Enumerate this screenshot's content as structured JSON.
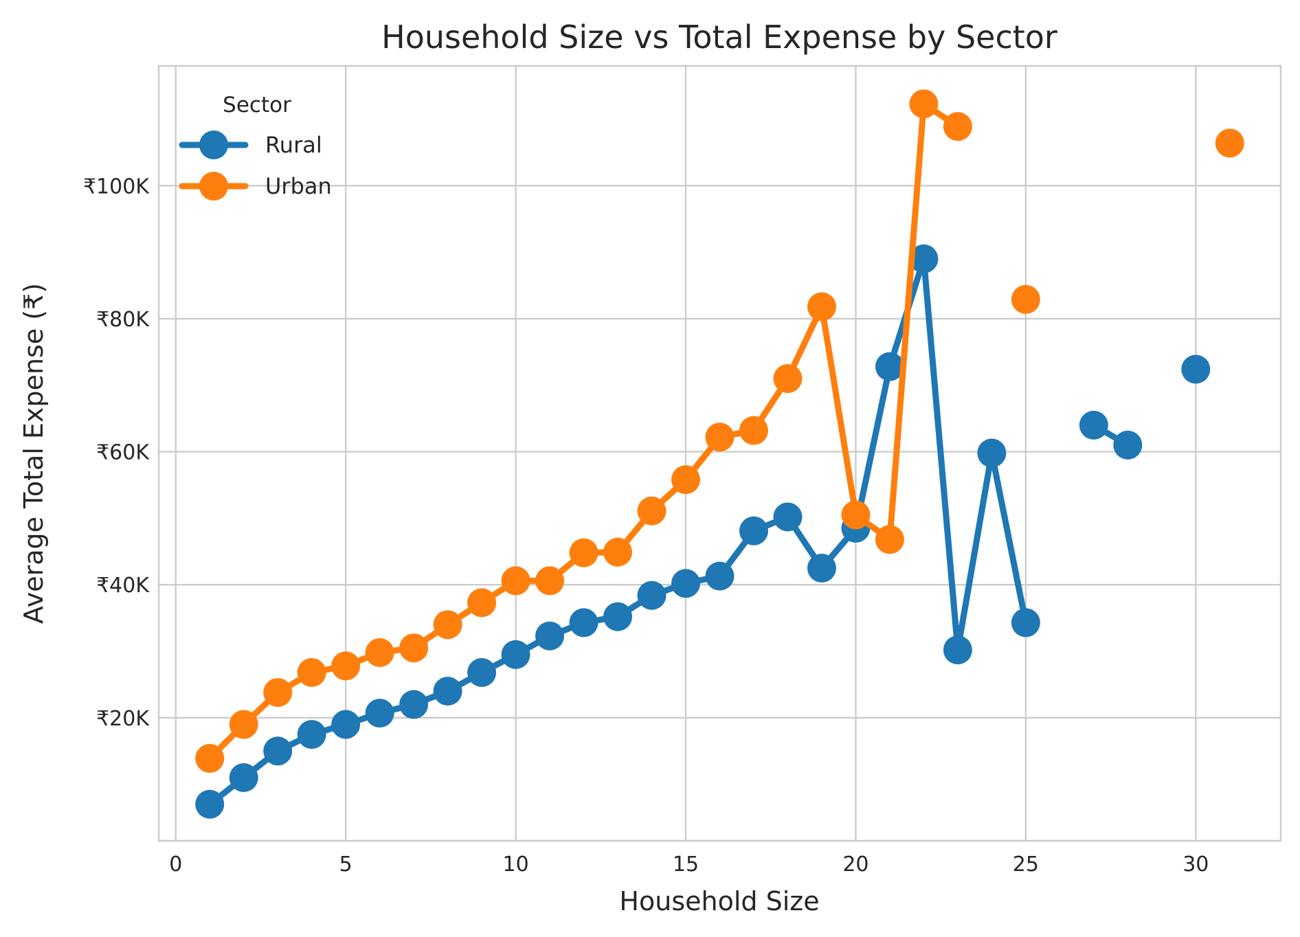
{
  "chart_data": {
    "type": "line",
    "title": "Household Size vs Total Expense by Sector",
    "xlabel": "Household Size",
    "ylabel": "Average Total Expense (₹)",
    "xlim": [
      -0.5,
      32.5
    ],
    "ylim": [
      1500,
      118000
    ],
    "xticks": [
      0,
      5,
      10,
      15,
      20,
      25,
      30
    ],
    "xtick_labels": [
      "0",
      "5",
      "10",
      "15",
      "20",
      "25",
      "30"
    ],
    "yticks": [
      20000,
      40000,
      60000,
      80000,
      100000
    ],
    "ytick_labels": [
      "₹20K",
      "₹40K",
      "₹60K",
      "₹80K",
      "₹100K"
    ],
    "grid": true,
    "legend": {
      "title": "Sector",
      "position": "top-left"
    },
    "series": [
      {
        "name": "Rural",
        "color": "#1f77b4",
        "x": [
          1,
          2,
          3,
          4,
          5,
          6,
          7,
          8,
          9,
          10,
          11,
          12,
          13,
          14,
          15,
          16,
          17,
          18,
          19,
          20,
          21,
          22,
          23,
          24,
          25,
          26,
          27,
          28,
          29,
          30
        ],
        "y": [
          7000,
          11000,
          15000,
          17500,
          19000,
          20700,
          22000,
          24000,
          26800,
          29500,
          32300,
          34300,
          35200,
          38400,
          40200,
          41300,
          48100,
          50200,
          42500,
          48500,
          72800,
          89000,
          30200,
          59800,
          34300,
          null,
          64000,
          61000,
          null,
          72400
        ]
      },
      {
        "name": "Urban",
        "color": "#ff7f0e",
        "x": [
          1,
          2,
          3,
          4,
          5,
          6,
          7,
          8,
          9,
          10,
          11,
          12,
          13,
          14,
          15,
          16,
          17,
          18,
          19,
          20,
          21,
          22,
          23,
          24,
          25,
          26,
          27,
          28,
          29,
          30,
          31
        ],
        "y": [
          13900,
          19000,
          23800,
          26800,
          27800,
          29800,
          30500,
          34000,
          37300,
          40600,
          40600,
          44800,
          44900,
          51100,
          55800,
          62200,
          63200,
          71000,
          81800,
          50500,
          46800,
          112300,
          108900,
          null,
          82900,
          null,
          null,
          null,
          null,
          null,
          106400
        ]
      }
    ]
  }
}
